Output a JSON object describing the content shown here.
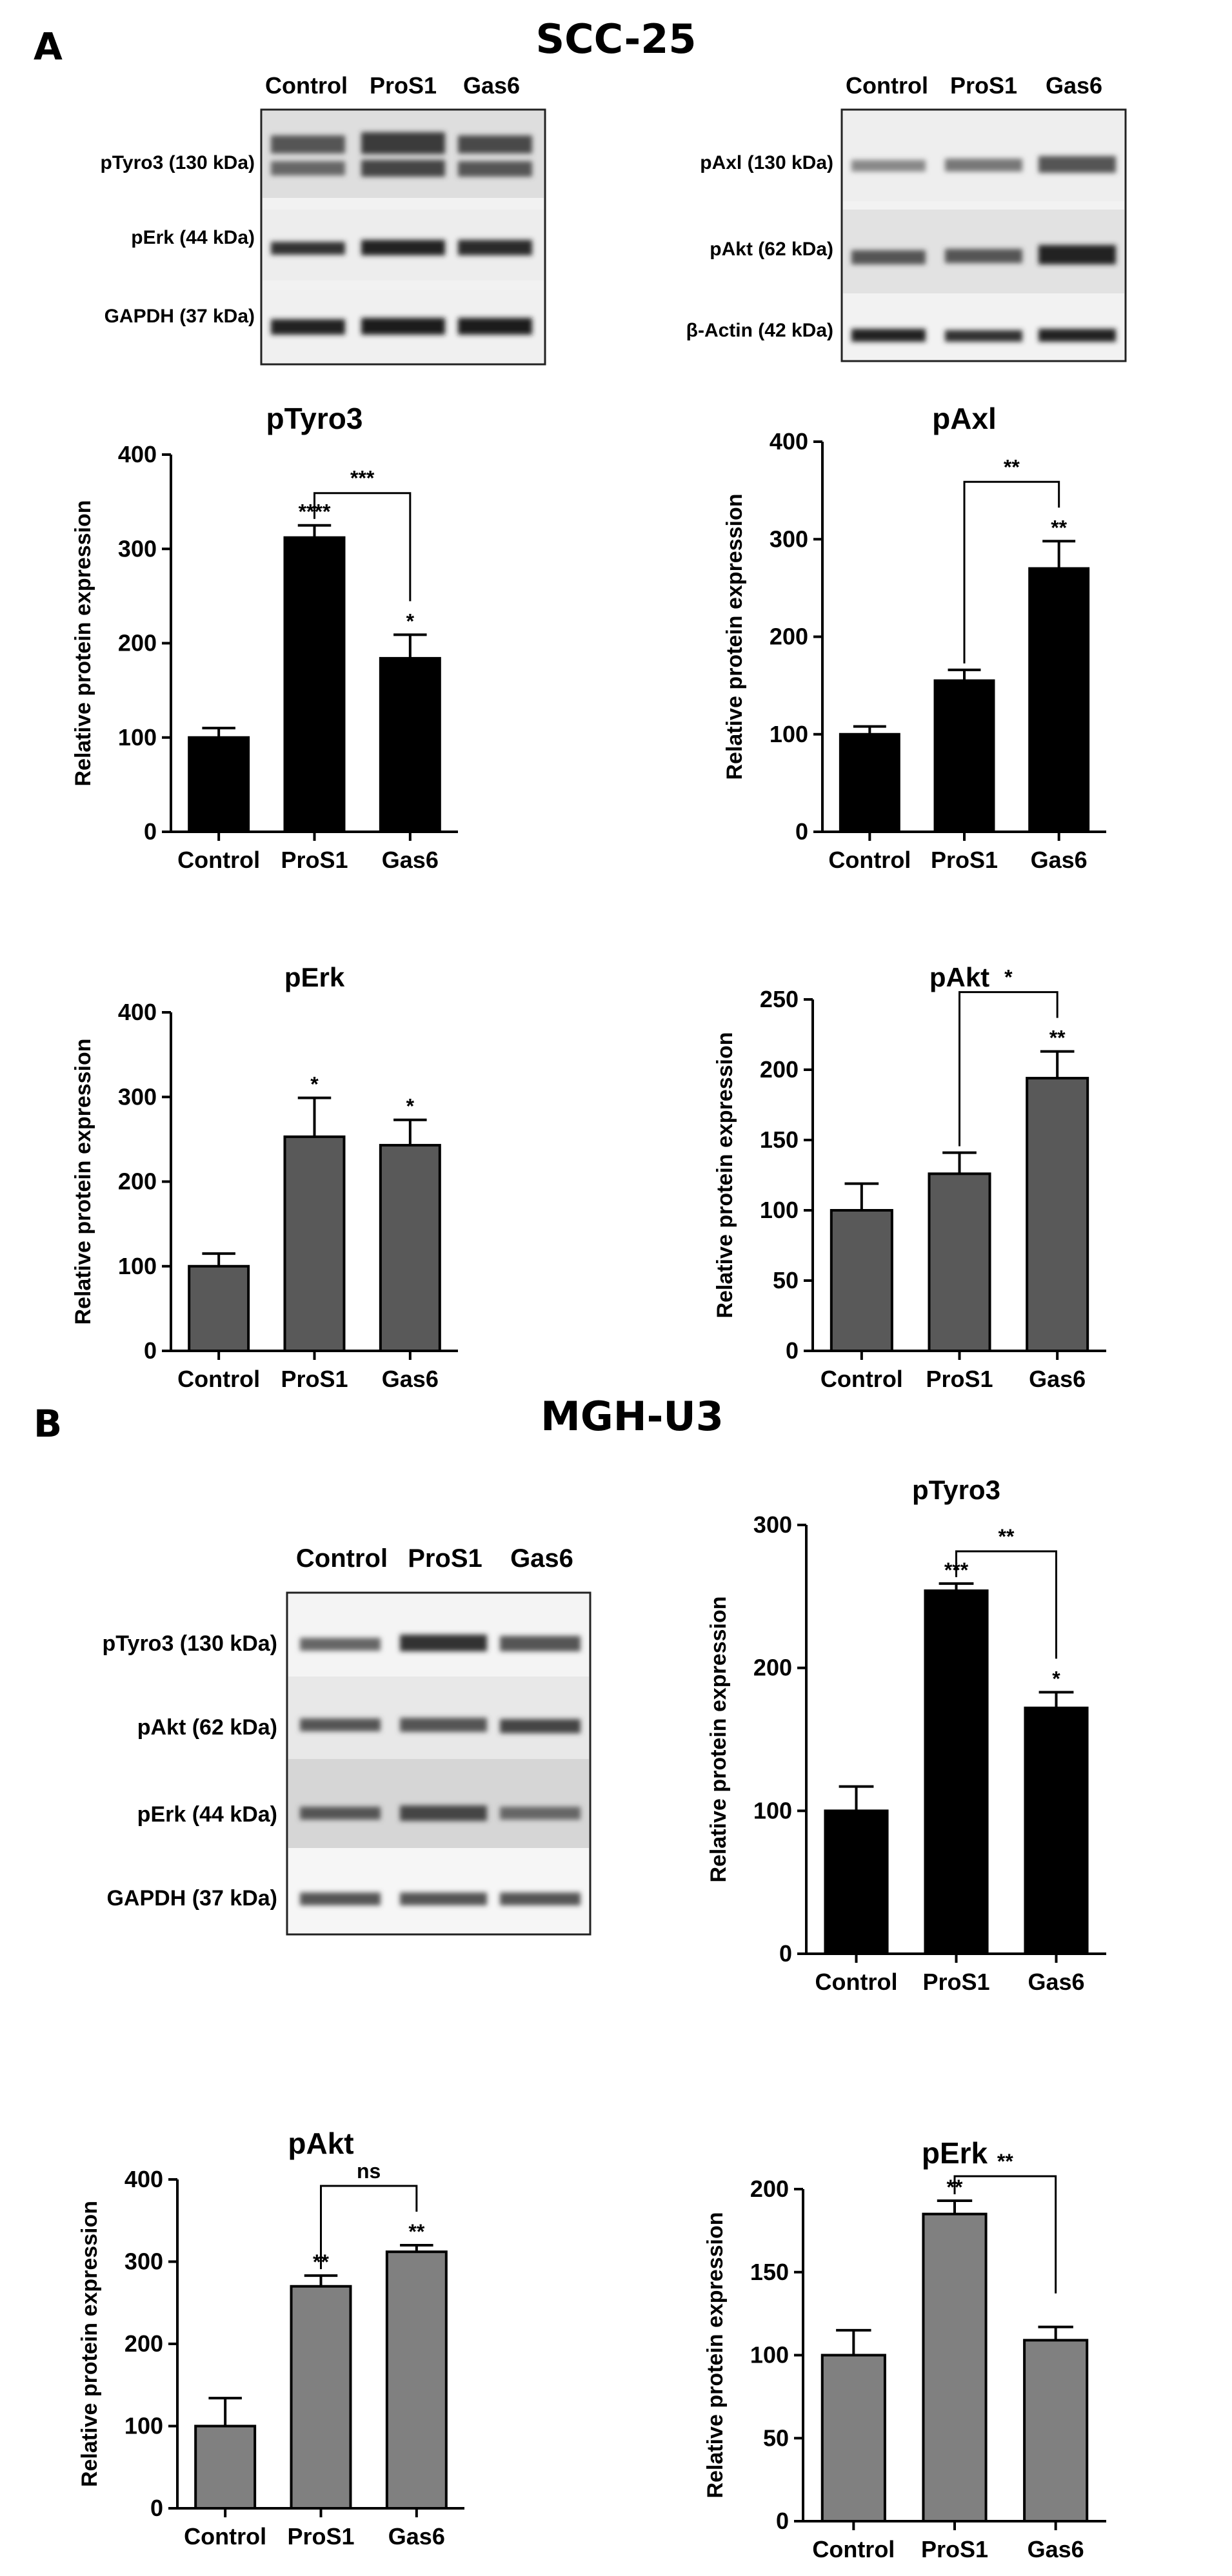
{
  "panels": [
    {
      "letter": "A",
      "title": "SCC-25"
    },
    {
      "letter": "B",
      "title": "MGH-U3"
    }
  ],
  "blots": [
    {
      "lanes": [
        "Control",
        "ProS1",
        "Gas6"
      ],
      "rows": [
        "pTyro3 (130 kDa)",
        "pErk (44 kDa)",
        "GAPDH (37 kDa)"
      ]
    },
    {
      "lanes": [
        "Control",
        "ProS1",
        "Gas6"
      ],
      "rows": [
        "pAxl (130 kDa)",
        "pAkt (62 kDa)",
        "β-Actin (42 kDa)"
      ]
    },
    {
      "lanes": [
        "Control",
        "ProS1",
        "Gas6"
      ],
      "rows": [
        "pTyro3 (130 kDa)",
        "pAkt (62 kDa)",
        "pErk (44 kDa)",
        "GAPDH (37 kDa)"
      ]
    }
  ],
  "chart_data": [
    {
      "type": "bar",
      "title": "pTyro3",
      "ylabel": "Relative protein expression",
      "categories": [
        "Control",
        "ProS1",
        "Gas6"
      ],
      "values": [
        100,
        312,
        184
      ],
      "errors": [
        10,
        13,
        25
      ],
      "ylim": [
        0,
        400
      ],
      "yticks": [
        0,
        100,
        200,
        300,
        400
      ],
      "bar_color": "#000000",
      "significance": [
        "",
        "****",
        "*"
      ],
      "brackets": [
        {
          "from": 1,
          "to": 2,
          "label": "***"
        }
      ]
    },
    {
      "type": "bar",
      "title": "pAxl",
      "ylabel": "Relative protein expression",
      "categories": [
        "Control",
        "ProS1",
        "Gas6"
      ],
      "values": [
        100,
        155,
        270
      ],
      "errors": [
        8,
        11,
        28
      ],
      "ylim": [
        0,
        400
      ],
      "yticks": [
        0,
        100,
        200,
        300,
        400
      ],
      "bar_color": "#000000",
      "significance": [
        "",
        "",
        "**"
      ],
      "brackets": [
        {
          "from": 1,
          "to": 2,
          "label": "**"
        }
      ]
    },
    {
      "type": "bar",
      "title": "pErk",
      "ylabel": "Relative protein expression",
      "categories": [
        "Control",
        "ProS1",
        "Gas6"
      ],
      "values": [
        100,
        253,
        243
      ],
      "errors": [
        15,
        46,
        30
      ],
      "ylim": [
        0,
        400
      ],
      "yticks": [
        0,
        100,
        200,
        300,
        400
      ],
      "bar_color": "#595959",
      "significance": [
        "",
        "*",
        "*"
      ],
      "brackets": []
    },
    {
      "type": "bar",
      "title": "pAkt",
      "ylabel": "Relative protein expression",
      "categories": [
        "Control",
        "ProS1",
        "Gas6"
      ],
      "values": [
        100,
        126,
        194
      ],
      "errors": [
        19,
        15,
        19
      ],
      "ylim": [
        0,
        250
      ],
      "yticks": [
        0,
        50,
        100,
        150,
        200,
        250
      ],
      "bar_color": "#595959",
      "significance": [
        "",
        "",
        "**"
      ],
      "brackets": [
        {
          "from": 1,
          "to": 2,
          "label": "*"
        }
      ]
    },
    {
      "type": "bar",
      "title": "pTyro3",
      "ylabel": "Relative protein expression",
      "categories": [
        "Control",
        "ProS1",
        "Gas6"
      ],
      "values": [
        100,
        254,
        172
      ],
      "errors": [
        17,
        5,
        11
      ],
      "ylim": [
        0,
        300
      ],
      "yticks": [
        0,
        100,
        200,
        300
      ],
      "bar_color": "#000000",
      "significance": [
        "",
        "***",
        "*"
      ],
      "brackets": [
        {
          "from": 1,
          "to": 2,
          "label": "**"
        }
      ]
    },
    {
      "type": "bar",
      "title": "pAkt",
      "ylabel": "Relative protein expression",
      "categories": [
        "Control",
        "ProS1",
        "Gas6"
      ],
      "values": [
        100,
        270,
        312
      ],
      "errors": [
        34,
        13,
        8
      ],
      "ylim": [
        0,
        400
      ],
      "yticks": [
        0,
        100,
        200,
        300,
        400
      ],
      "bar_color": "#808080",
      "significance": [
        "",
        "**",
        "**"
      ],
      "brackets": [
        {
          "from": 1,
          "to": 2,
          "label": "ns"
        }
      ]
    },
    {
      "type": "bar",
      "title": "pErk",
      "ylabel": "Relative protein expression",
      "categories": [
        "Control",
        "ProS1",
        "Gas6"
      ],
      "values": [
        100,
        185,
        109
      ],
      "errors": [
        15,
        8,
        8
      ],
      "ylim": [
        0,
        200
      ],
      "yticks": [
        0,
        50,
        100,
        150,
        200
      ],
      "bar_color": "#808080",
      "significance": [
        "",
        "**",
        ""
      ],
      "brackets": [
        {
          "from": 1,
          "to": 2,
          "label": "**"
        }
      ]
    }
  ]
}
